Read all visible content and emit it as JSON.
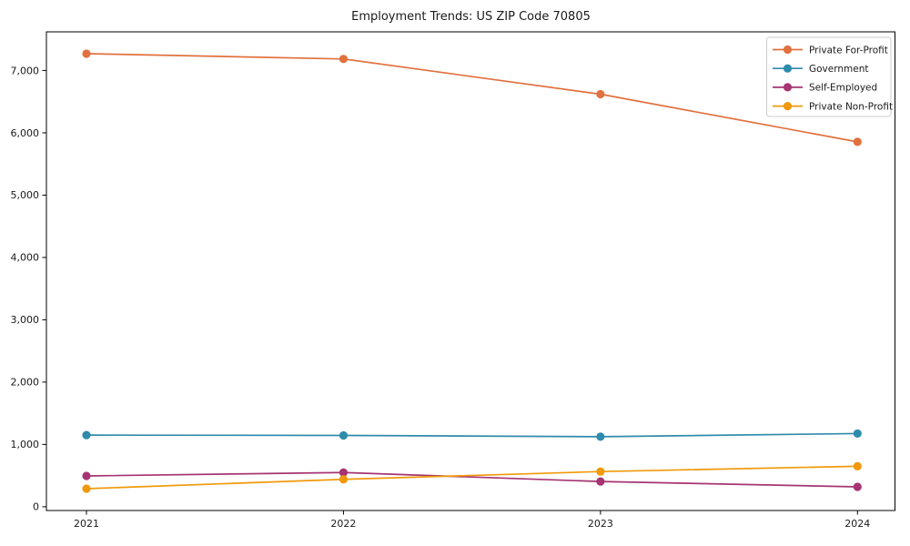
{
  "figure": {
    "title": "Employment Trends: US ZIP Code 70805"
  },
  "chart_data": {
    "type": "line",
    "title": "Employment Trends: US ZIP Code 70805",
    "x": [
      "2021",
      "2022",
      "2023",
      "2024"
    ],
    "series": [
      {
        "name": "Private For-Profit",
        "color": "#e1713e",
        "values": [
          7270,
          7185,
          6620,
          5855
        ]
      },
      {
        "name": "Government",
        "color": "#2e8bab",
        "values": [
          1150,
          1145,
          1125,
          1175
        ]
      },
      {
        "name": "Self-Employed",
        "color": "#a63472",
        "values": [
          495,
          550,
          405,
          320
        ]
      },
      {
        "name": "Private Non-Profit",
        "color": "#f0990b",
        "values": [
          290,
          440,
          565,
          650
        ]
      }
    ],
    "xlabel": "",
    "ylabel": "",
    "ylim": [
      -60,
      7620
    ],
    "yticks": [
      0,
      1000,
      2000,
      3000,
      4000,
      5000,
      6000,
      7000
    ],
    "ytick_format": "thousands-comma",
    "grid": false,
    "legend_position": "upper right",
    "marker": "circle",
    "axis_color": "#000000",
    "text_color": "#1a1a1a",
    "legend_border_color": "#cccccc"
  }
}
